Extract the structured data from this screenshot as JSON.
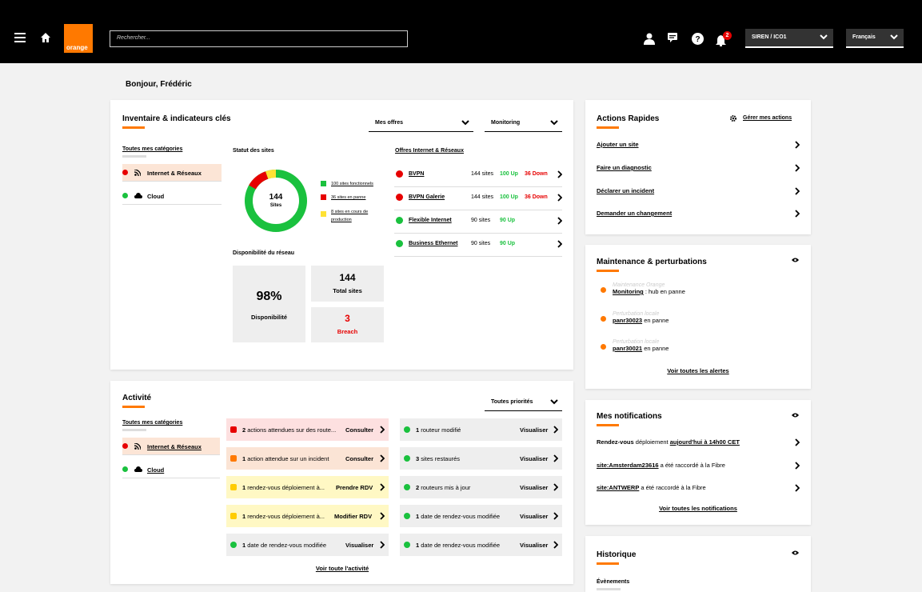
{
  "header": {
    "search_placeholder": "Rechercher...",
    "account": "SIREN / ICO1",
    "language": "Français",
    "notif_count": "2",
    "logo_text": "orange"
  },
  "greeting": "Bonjour, Frédéric",
  "inventory": {
    "title": "Inventaire & indicateurs clés",
    "filter1": "Mes offres",
    "filter2": "Monitoring",
    "all_categories": "Toutes mes catégories",
    "cat1": "Internet & Réseaux",
    "cat2": "Cloud",
    "status_title": "Statut des sites",
    "donut_value": "144",
    "donut_label": "Sites",
    "legend": [
      "100 sites fonctionnels",
      "36 sites en panne",
      "8 sites en cours de production"
    ],
    "offers_title": "Offres Internet & Réseaux",
    "offers": [
      {
        "name": "BVPN",
        "sites": "144 sites",
        "up": "100 Up",
        "down": "36 Down"
      },
      {
        "name": "BVPN Galerie",
        "sites": "144 sites",
        "up": "100 Up",
        "down": "36 Down"
      },
      {
        "name": "Flexible Internet",
        "sites": "90 sites",
        "up": "90 Up",
        "down": ""
      },
      {
        "name": "Business Ethernet",
        "sites": "90 sites",
        "up": "90 Up",
        "down": ""
      }
    ],
    "availability_title": "Disponibilité du réseau",
    "avail_value": "98%",
    "avail_label": "Disponibilité",
    "total_value": "144",
    "total_label": "Total sites",
    "breach_value": "3",
    "breach_label": "Breach"
  },
  "activity": {
    "title": "Activité",
    "filter": "Toutes priorités",
    "all_categories": "Toutes mes catégories",
    "cat1": "Internet & Réseaux",
    "cat2": "Cloud",
    "left": [
      {
        "count": "2",
        "text": "actions attendues sur des route...",
        "btn": "Consulter"
      },
      {
        "count": "1",
        "text": "action attendue sur un incident",
        "btn": "Consulter"
      },
      {
        "count": "1",
        "text": "rendez-vous déploiement à...",
        "btn": "Prendre RDV"
      },
      {
        "count": "1",
        "text": "rendez-vous déploiement à...",
        "btn": "Modifier RDV"
      },
      {
        "count": "1",
        "text": "date de rendez-vous modifiée",
        "btn": "Visualiser"
      }
    ],
    "right": [
      {
        "count": "1",
        "text": "routeur modifié",
        "btn": "Visualiser"
      },
      {
        "count": "3",
        "text": "sites restaurés",
        "btn": "Visualiser"
      },
      {
        "count": "2",
        "text": "routeurs mis à jour",
        "btn": "Visualiser"
      },
      {
        "count": "1",
        "text": "date de rendez-vous modifiée",
        "btn": "Visualiser"
      },
      {
        "count": "1",
        "text": "date de rendez-vous modifiée",
        "btn": "Visualiser"
      }
    ],
    "see_all": "Voir toute l'activité"
  },
  "quick": {
    "title": "Actions Rapides",
    "manage": "Gérer mes actions",
    "items": [
      "Ajouter un site",
      "Faire un diagnostic",
      "Déclarer un incident",
      "Demander un changement"
    ]
  },
  "maintenance": {
    "title": "Maintenance & perturbations",
    "items": [
      {
        "type": "Maintenance Orange",
        "link": "Monitoring",
        "text": " : hub en panne"
      },
      {
        "type": "Perturbation locale",
        "link": "panr30023",
        "text": " en panne"
      },
      {
        "type": "Perturbation locale",
        "link": "panr30021",
        "text": " en panne"
      }
    ],
    "see_all": "Voir toutes les alertes"
  },
  "notifications": {
    "title": "Mes notifications",
    "items": [
      {
        "a": "Rendez-vous",
        "b": " déploiement ",
        "c": "aujourd'hui à 14h00 CET",
        "d": ""
      },
      {
        "a": "",
        "b": "",
        "c": "site:Amsterdam23616",
        "d": " a été raccordé à la Fibre"
      },
      {
        "a": "",
        "b": "",
        "c": "site:ANTWERP",
        "d": " a été raccordé à la Fibre"
      }
    ],
    "see_all": "Voir toutes les notifications"
  },
  "history": {
    "title": "Historique",
    "sub": "Évènements"
  },
  "colors": {
    "accent": "#ff7900",
    "red": "#e70000",
    "green": "#1ac13e",
    "yellow": "#ffe234"
  }
}
